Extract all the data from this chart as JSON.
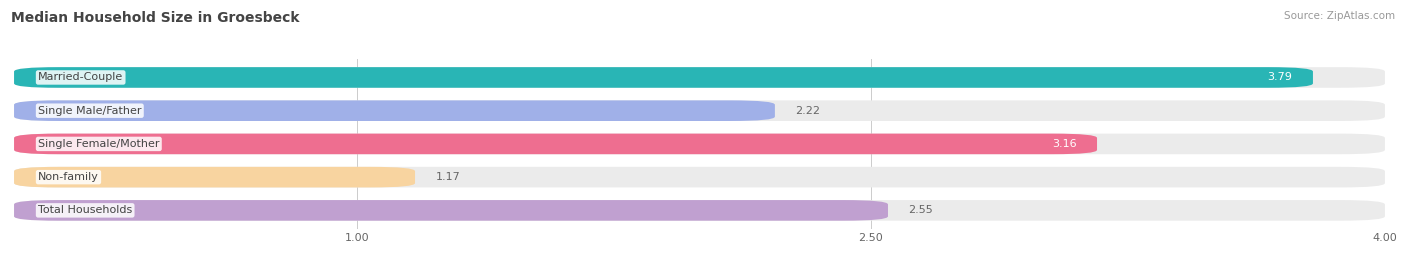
{
  "title": "Median Household Size in Groesbeck",
  "source": "Source: ZipAtlas.com",
  "categories": [
    "Married-Couple",
    "Single Male/Father",
    "Single Female/Mother",
    "Non-family",
    "Total Households"
  ],
  "values": [
    3.79,
    2.22,
    3.16,
    1.17,
    2.55
  ],
  "bar_colors": [
    "#29b5b5",
    "#a0b0e8",
    "#ee6e90",
    "#f8d4a0",
    "#c0a0d0"
  ],
  "value_inside": [
    true,
    false,
    true,
    false,
    false
  ],
  "xlim_min": 0.0,
  "xlim_max": 4.0,
  "xticks": [
    1.0,
    2.5,
    4.0
  ],
  "background_color": "#ffffff",
  "bar_bg_color": "#ebebeb",
  "title_fontsize": 10,
  "source_fontsize": 7.5,
  "value_fontsize": 8,
  "category_fontsize": 8,
  "bar_height": 0.62,
  "bar_gap": 0.38,
  "inside_label_color": "#ffffff",
  "outside_label_color": "#666666",
  "category_text_color": "#444444"
}
